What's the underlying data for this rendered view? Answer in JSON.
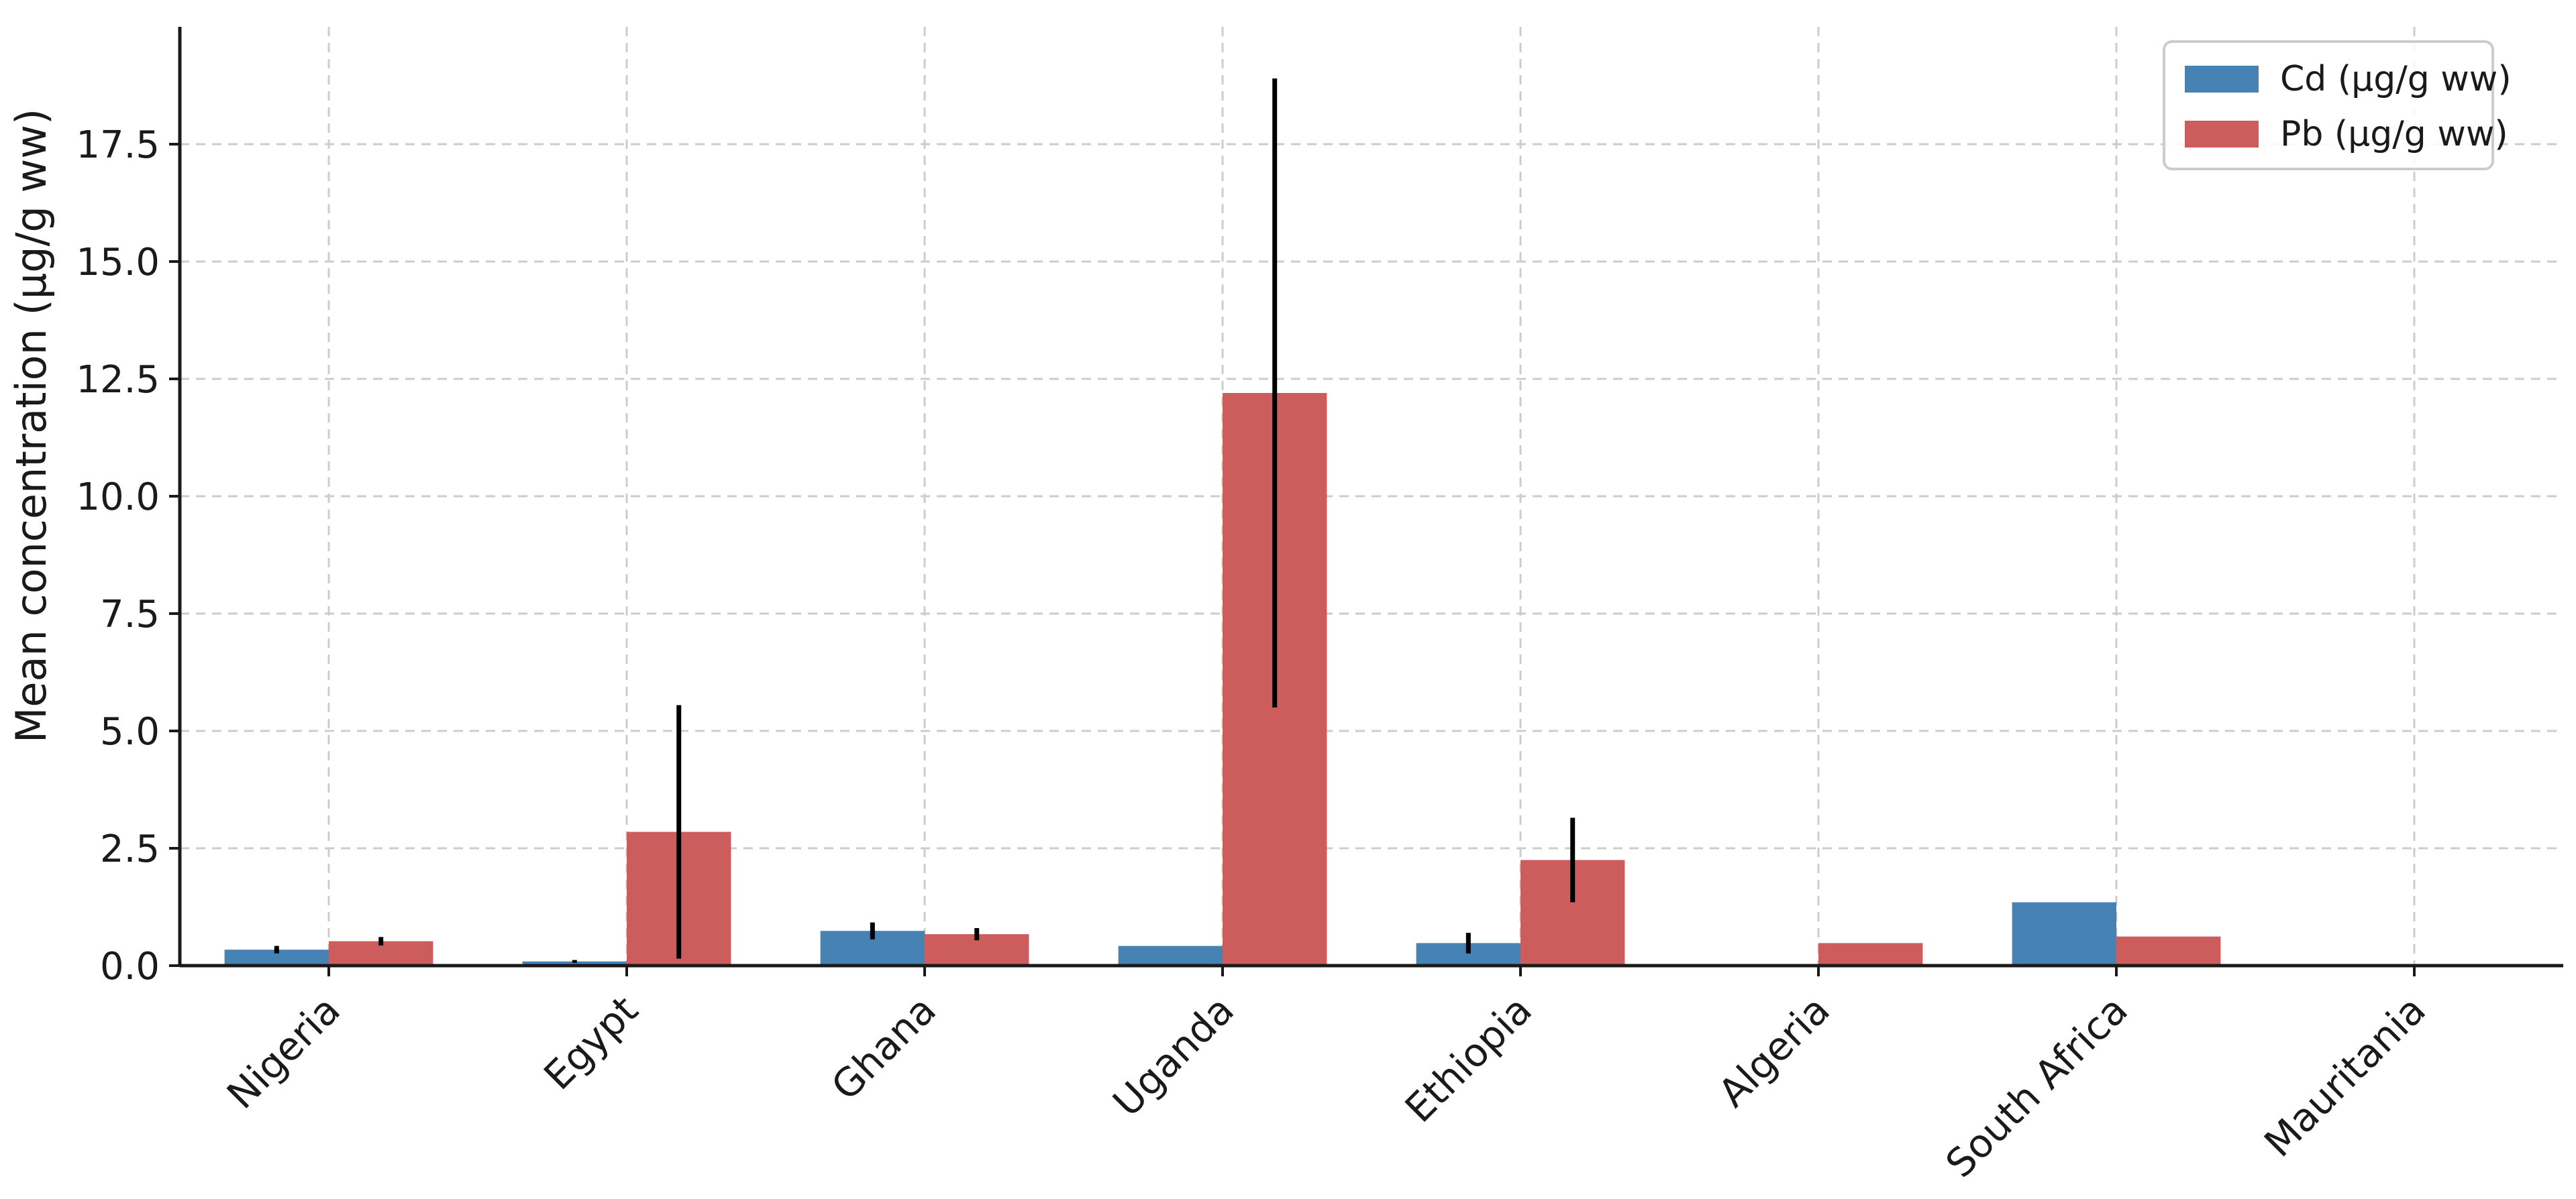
{
  "chart_data": {
    "type": "bar",
    "title": "",
    "xlabel": "",
    "ylabel": "Mean concentration (µg/g ww)",
    "categories": [
      "Nigeria",
      "Egypt",
      "Ghana",
      "Uganda",
      "Ethiopia",
      "Algeria",
      "South Africa",
      "Mauritania"
    ],
    "series": [
      {
        "name": "Cd (µg/g ww)",
        "color": "#4682b4",
        "values": [
          0.34,
          0.09,
          0.74,
          0.42,
          0.48,
          null,
          1.35,
          0.03
        ],
        "errors": [
          0.08,
          0.03,
          0.18,
          null,
          0.22,
          null,
          null,
          null
        ]
      },
      {
        "name": "Pb (µg/g ww)",
        "color": "#cd5c5c",
        "values": [
          0.52,
          2.85,
          0.67,
          12.2,
          2.25,
          0.48,
          0.62,
          null
        ],
        "errors": [
          0.09,
          2.7,
          0.13,
          6.7,
          0.9,
          null,
          null,
          null
        ]
      }
    ],
    "yticks": [
      "0.0",
      "2.5",
      "5.0",
      "7.5",
      "10.0",
      "12.5",
      "15.0",
      "17.5"
    ],
    "ylim": [
      0,
      20
    ],
    "grid": true,
    "legend_position": "top-right"
  }
}
